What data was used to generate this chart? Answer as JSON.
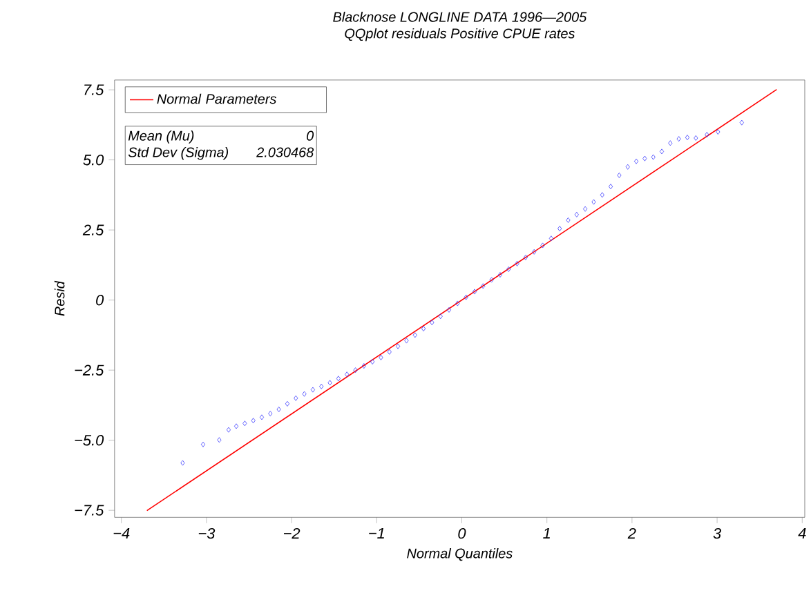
{
  "chart_data": {
    "type": "scatter",
    "title": "Blacknose LONGLINE DATA 1996—2005",
    "subtitle": "QQplot residuals Positive CPUE rates",
    "xlabel": "Normal Quantiles",
    "ylabel": "Resid",
    "xlim": [
      -4.08,
      4.03
    ],
    "ylim": [
      -7.75,
      7.85
    ],
    "xticks": [
      {
        "value": -4,
        "label": "−4"
      },
      {
        "value": -3,
        "label": "−3"
      },
      {
        "value": -2,
        "label": "−2"
      },
      {
        "value": -1,
        "label": "−1"
      },
      0,
      1,
      2,
      3,
      4
    ],
    "yticks": [
      {
        "value": -7.5,
        "label": "−7.5"
      },
      {
        "value": -5,
        "label": "−5.0"
      },
      {
        "value": -2.5,
        "label": "−2.5"
      },
      0,
      2.5,
      {
        "value": 5,
        "label": "5.0"
      },
      7.5
    ],
    "legend": "top left",
    "grid": false,
    "annotations": [
      "Mean (Mu)",
      "0",
      "Std Dev (Sigma)",
      "2.030468"
    ],
    "series": [
      {
        "marker": "diamond",
        "color": "#3c3cff",
        "x": [
          -3.28,
          -3.04,
          -2.85,
          -2.74,
          -2.65,
          -2.55,
          -2.45,
          -2.35,
          -2.25,
          -2.15,
          -2.05,
          -1.95,
          -1.85,
          -1.75,
          -1.65,
          -1.55,
          -1.45,
          -1.35,
          -1.25,
          -1.15,
          -1.05,
          -0.95,
          -0.85,
          -0.75,
          -0.65,
          -0.55,
          -0.45,
          -0.35,
          -0.25,
          -0.15,
          -0.05,
          0.05,
          0.15,
          0.25,
          0.35,
          0.45,
          0.55,
          0.65,
          0.75,
          0.85,
          0.95,
          1.05,
          1.15,
          1.25,
          1.35,
          1.45,
          1.55,
          1.65,
          1.75,
          1.85,
          1.95,
          2.05,
          2.15,
          2.25,
          2.35,
          2.45,
          2.55,
          2.65,
          2.75,
          2.88,
          3.01,
          3.29
        ],
        "values": [
          -5.81,
          -5.15,
          -4.99,
          -4.63,
          -4.5,
          -4.4,
          -4.3,
          -4.18,
          -4.05,
          -3.9,
          -3.7,
          -3.5,
          -3.35,
          -3.2,
          -3.08,
          -2.95,
          -2.8,
          -2.65,
          -2.5,
          -2.35,
          -2.2,
          -2.05,
          -1.85,
          -1.65,
          -1.45,
          -1.25,
          -1.02,
          -0.8,
          -0.58,
          -0.35,
          -0.12,
          0.1,
          0.3,
          0.5,
          0.72,
          0.9,
          1.1,
          1.3,
          1.52,
          1.72,
          1.95,
          2.2,
          2.55,
          2.85,
          3.05,
          3.25,
          3.5,
          3.75,
          4.05,
          4.45,
          4.75,
          4.95,
          5.05,
          5.1,
          5.3,
          5.6,
          5.75,
          5.8,
          5.78,
          5.9,
          6.0,
          6.33
        ]
      },
      {
        "type": "line",
        "name": "Normal Parameters",
        "color": "#ff0000",
        "x": [
          -3.7,
          3.7
        ],
        "values": [
          -7.51,
          7.51
        ]
      }
    ]
  }
}
